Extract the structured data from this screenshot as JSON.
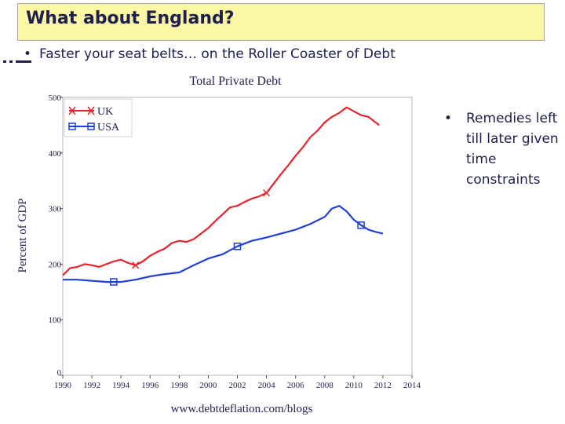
{
  "slide": {
    "title": "What about England?",
    "bullet": "Faster your seat belts… on the Roller Coaster of Debt",
    "side_bullet": "Remedies left till later given time constraints",
    "bullet_glyph": "•",
    "title_bg": "#fcf7a4",
    "text_color": "#1f1f4f"
  },
  "chart_data": {
    "type": "line",
    "title": "Total Private Debt",
    "xlabel": "",
    "ylabel": "Percent of GDP",
    "source": "www.debtdeflation.com/blogs",
    "xlim": [
      1990,
      2014
    ],
    "ylim": [
      0,
      500
    ],
    "xticks": [
      1990,
      1992,
      1994,
      1996,
      1998,
      2000,
      2002,
      2004,
      2006,
      2008,
      2010,
      2012,
      2014
    ],
    "yticks": [
      0,
      100,
      200,
      300,
      400,
      500
    ],
    "grid": false,
    "legend_position": "top-left",
    "series": [
      {
        "name": "UK",
        "color": "#e8232a",
        "marker": "x",
        "x": [
          1990,
          1990.5,
          1991,
          1991.5,
          1992,
          1992.5,
          1993,
          1993.5,
          1994,
          1994.5,
          1995,
          1995.5,
          1996,
          1996.5,
          1997,
          1997.5,
          1998,
          1998.5,
          1999,
          1999.5,
          2000,
          2000.5,
          2001,
          2001.5,
          2002,
          2002.5,
          2003,
          2003.5,
          2004,
          2004.5,
          2005,
          2005.5,
          2006,
          2006.5,
          2007,
          2007.5,
          2008,
          2008.5,
          2009,
          2009.5,
          2010,
          2010.5,
          2011,
          2011.5,
          2011.75
        ],
        "values": [
          180,
          193,
          195,
          200,
          198,
          195,
          200,
          205,
          208,
          202,
          198,
          205,
          215,
          222,
          228,
          238,
          242,
          240,
          245,
          255,
          265,
          278,
          290,
          302,
          305,
          312,
          318,
          322,
          328,
          345,
          362,
          378,
          395,
          410,
          428,
          440,
          455,
          465,
          472,
          482,
          475,
          468,
          465,
          455,
          450
        ],
        "marker_x": [
          1995,
          2004
        ]
      },
      {
        "name": "USA",
        "color": "#1e3fd8",
        "marker": "square",
        "x": [
          1990,
          1991,
          1992,
          1993,
          1994,
          1995,
          1996,
          1997,
          1998,
          1999,
          2000,
          2001,
          2002,
          2003,
          2004,
          2005,
          2006,
          2007,
          2008,
          2008.5,
          2009,
          2009.5,
          2010,
          2010.5,
          2011,
          2011.5,
          2012
        ],
        "values": [
          172,
          172,
          170,
          168,
          168,
          172,
          178,
          182,
          185,
          198,
          210,
          218,
          232,
          242,
          248,
          255,
          262,
          272,
          285,
          300,
          305,
          295,
          280,
          270,
          262,
          258,
          255
        ],
        "marker_x": [
          1993.5,
          2002,
          2010.5
        ]
      }
    ]
  }
}
